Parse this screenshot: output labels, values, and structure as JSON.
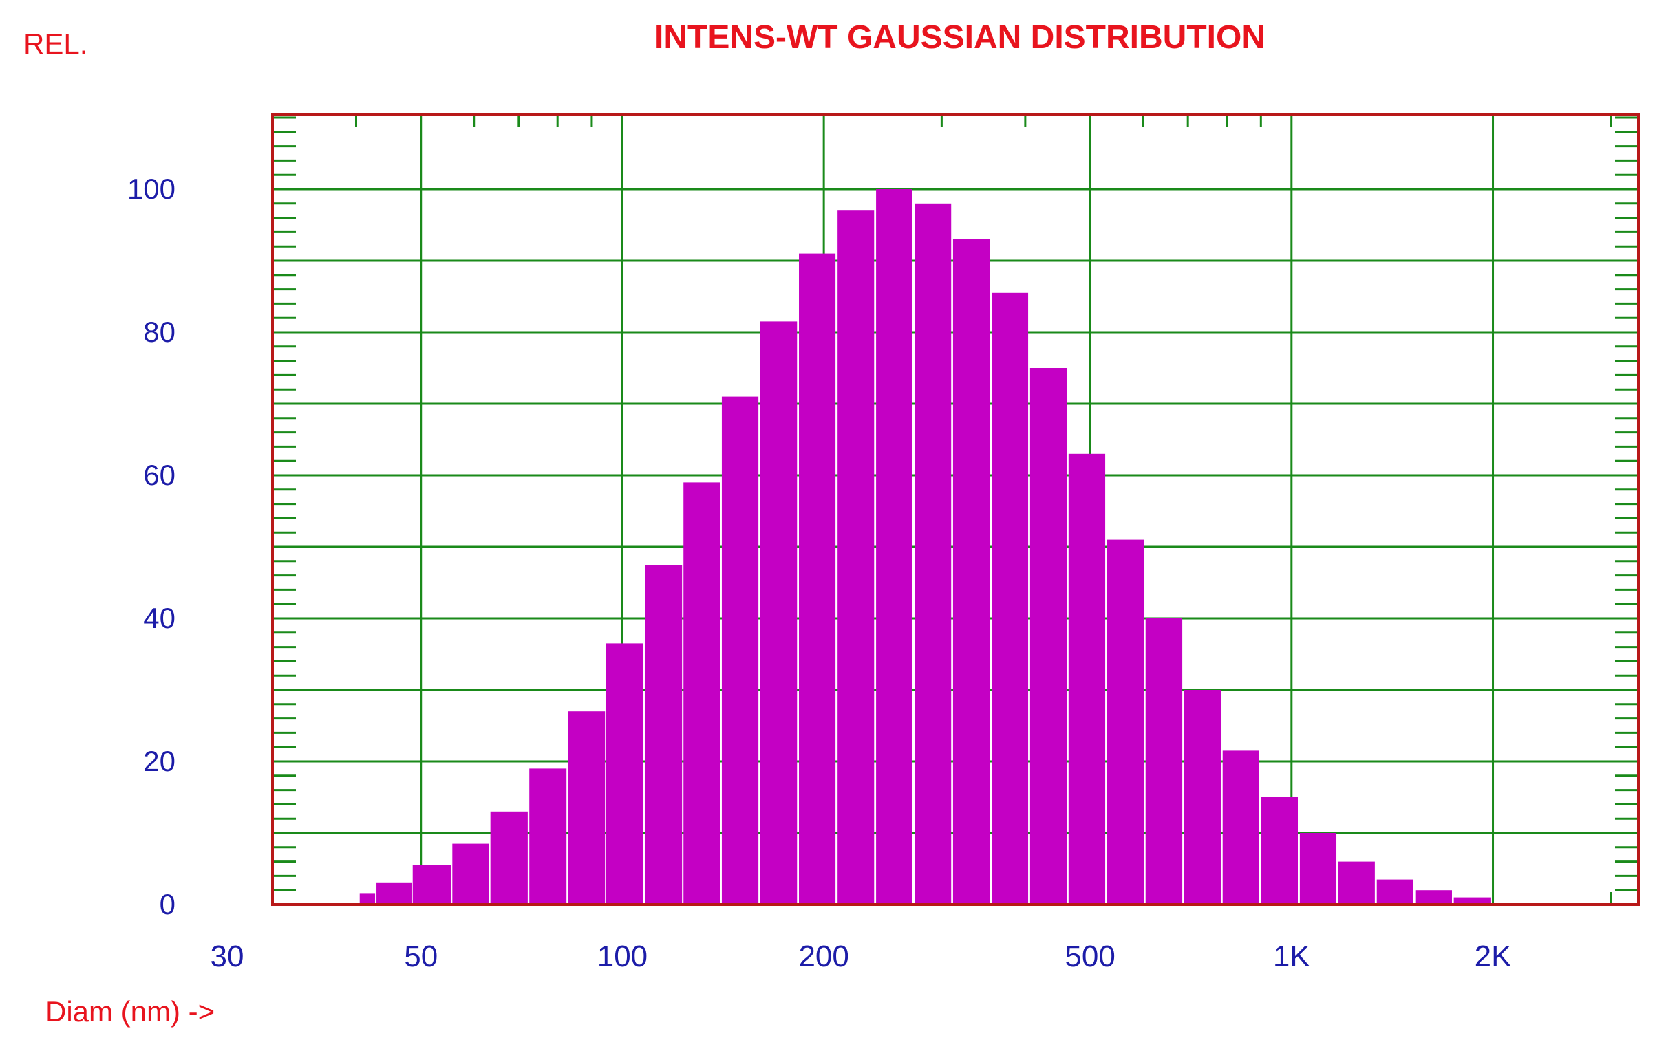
{
  "chart_data": {
    "type": "bar",
    "title": "INTENS-WT GAUSSIAN DISTRIBUTION",
    "ylabel": "REL.",
    "xlabel": "Diam (nm) ->",
    "x_scale": "log",
    "xlim": [
      30,
      3300
    ],
    "ylim": [
      0,
      110
    ],
    "grid": true,
    "y_ticks": [
      {
        "value": 0,
        "label": "0"
      },
      {
        "value": 20,
        "label": "20"
      },
      {
        "value": 40,
        "label": "40"
      },
      {
        "value": 60,
        "label": "60"
      },
      {
        "value": 80,
        "label": "80"
      },
      {
        "value": 100,
        "label": "100"
      }
    ],
    "x_ticks": [
      {
        "value": 30,
        "label": "30"
      },
      {
        "value": 50,
        "label": "50"
      },
      {
        "value": 100,
        "label": "100"
      },
      {
        "value": 200,
        "label": "200"
      },
      {
        "value": 500,
        "label": "500"
      },
      {
        "value": 1000,
        "label": "1K"
      },
      {
        "value": 2000,
        "label": "2K"
      }
    ],
    "bins": [
      {
        "x_start": 40.5,
        "x_end": 42.7,
        "value": 1.5
      },
      {
        "x_start": 42.9,
        "x_end": 48.4,
        "value": 3
      },
      {
        "x_start": 48.6,
        "x_end": 55.5,
        "value": 5.5
      },
      {
        "x_start": 55.7,
        "x_end": 63.2,
        "value": 8.5
      },
      {
        "x_start": 63.5,
        "x_end": 72.2,
        "value": 13
      },
      {
        "x_start": 72.6,
        "x_end": 82.5,
        "value": 19
      },
      {
        "x_start": 83.0,
        "x_end": 94.2,
        "value": 27
      },
      {
        "x_start": 94.6,
        "x_end": 107.4,
        "value": 36.5
      },
      {
        "x_start": 108.2,
        "x_end": 122.8,
        "value": 47.5
      },
      {
        "x_start": 123.4,
        "x_end": 140.0,
        "value": 59
      },
      {
        "x_start": 140.8,
        "x_end": 159.7,
        "value": 71
      },
      {
        "x_start": 160.7,
        "x_end": 182.4,
        "value": 81.5
      },
      {
        "x_start": 183.6,
        "x_end": 208.2,
        "value": 91
      },
      {
        "x_start": 209.7,
        "x_end": 237.8,
        "value": 97
      },
      {
        "x_start": 239.4,
        "x_end": 271.3,
        "value": 100
      },
      {
        "x_start": 273.3,
        "x_end": 310.0,
        "value": 98
      },
      {
        "x_start": 312.0,
        "x_end": 354.0,
        "value": 93
      },
      {
        "x_start": 356.3,
        "x_end": 404.0,
        "value": 85.5
      },
      {
        "x_start": 406.7,
        "x_end": 461.3,
        "value": 75
      },
      {
        "x_start": 464.3,
        "x_end": 526.7,
        "value": 63
      },
      {
        "x_start": 530.0,
        "x_end": 601.3,
        "value": 51
      },
      {
        "x_start": 605.2,
        "x_end": 686.7,
        "value": 40
      },
      {
        "x_start": 691.0,
        "x_end": 784.0,
        "value": 30
      },
      {
        "x_start": 789.0,
        "x_end": 895.0,
        "value": 21.5
      },
      {
        "x_start": 901.0,
        "x_end": 1022.0,
        "value": 15
      },
      {
        "x_start": 1029.0,
        "x_end": 1167.0,
        "value": 10
      },
      {
        "x_start": 1174.0,
        "x_end": 1332.0,
        "value": 6
      },
      {
        "x_start": 1341.0,
        "x_end": 1521.0,
        "value": 3.5
      },
      {
        "x_start": 1531.0,
        "x_end": 1737.0,
        "value": 2
      },
      {
        "x_start": 1748.0,
        "x_end": 1983.0,
        "value": 1
      }
    ]
  },
  "colors": {
    "text": "#e8141e",
    "tick_labels": "#1c1ca8",
    "bars": "#c400c4",
    "grid": "#1a8a1a",
    "frame": "#b81818",
    "background": "#ffffff"
  }
}
